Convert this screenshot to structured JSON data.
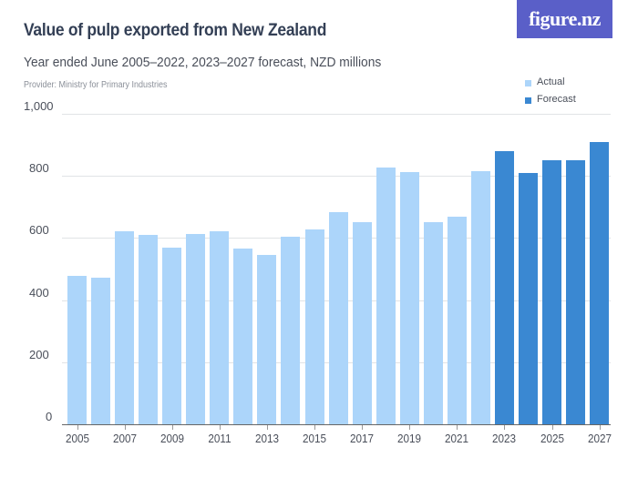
{
  "header": {
    "title": "Value of pulp exported from New Zealand",
    "subtitle": "Year ended June 2005–2022, 2023–2027 forecast, NZD millions",
    "provider": "Provider: Ministry for Primary Industries",
    "logo": "figure.nz"
  },
  "legend": [
    {
      "label": "Actual",
      "color": "#acd5fa"
    },
    {
      "label": "Forecast",
      "color": "#3a88d2"
    }
  ],
  "chart_data": {
    "type": "bar",
    "title": "Value of pulp exported from New Zealand",
    "subtitle": "Year ended June 2005–2022, 2023–2027 forecast, NZD millions",
    "xlabel": "",
    "ylabel": "NZD millions",
    "ylim": [
      0,
      1000
    ],
    "yticks": [
      "0",
      "200",
      "400",
      "600",
      "800",
      "1,000"
    ],
    "xtick_labels": [
      "2005",
      "2007",
      "2009",
      "2011",
      "2013",
      "2015",
      "2017",
      "2019",
      "2021",
      "2023",
      "2025",
      "2027"
    ],
    "grid": true,
    "legend_position": "top-right",
    "categories": [
      "2005",
      "2006",
      "2007",
      "2008",
      "2009",
      "2010",
      "2011",
      "2012",
      "2013",
      "2014",
      "2015",
      "2016",
      "2017",
      "2018",
      "2019",
      "2020",
      "2021",
      "2022",
      "2023",
      "2024",
      "2025",
      "2026",
      "2027"
    ],
    "series": [
      {
        "name": "Actual",
        "color": "#acd5fa",
        "values": [
          478,
          473,
          622,
          609,
          570,
          614,
          622,
          565,
          545,
          604,
          628,
          683,
          651,
          828,
          812,
          651,
          670,
          816,
          null,
          null,
          null,
          null,
          null
        ]
      },
      {
        "name": "Forecast",
        "color": "#3a88d2",
        "values": [
          null,
          null,
          null,
          null,
          null,
          null,
          null,
          null,
          null,
          null,
          null,
          null,
          null,
          null,
          null,
          null,
          null,
          null,
          880,
          810,
          850,
          850,
          910
        ]
      }
    ]
  }
}
